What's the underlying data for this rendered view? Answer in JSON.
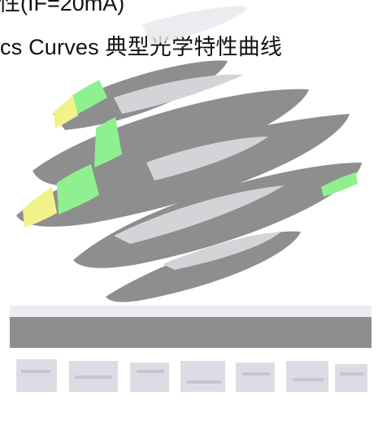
{
  "document": {
    "top_line_fragment": "性(IF=20mA)",
    "heading_en_fragment": "cs Curves",
    "heading_cn": "典型光学特性曲线"
  },
  "watermark": {
    "description_hidden": true,
    "colors": {
      "main_gray": "#8e8e8e",
      "light_gray": "#d4d4d8",
      "green": "#8ff08f",
      "yellow": "#f2f28a",
      "pale": "#ececf2"
    }
  }
}
